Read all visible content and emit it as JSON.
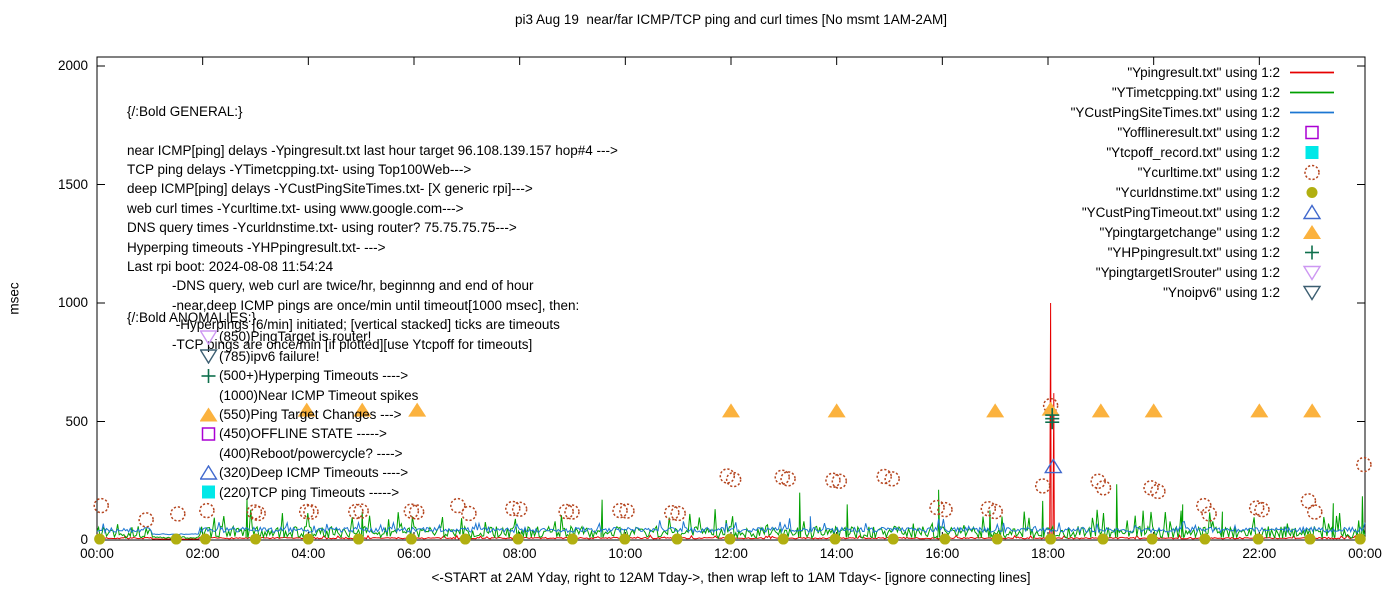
{
  "title": "pi3 Aug 19  near/far ICMP/TCP ping and curl times [No msmt 1AM-2AM]",
  "y_axis_label": "msec",
  "x_axis_caption": "<-START at 2AM Yday, right to 12AM Tday->, then wrap left to 1AM Tday<- [ignore connecting lines]",
  "annotations": {
    "general": {
      "heading": "{/:Bold GENERAL:}",
      "lines": [
        "near ICMP[ping] delays -Ypingresult.txt last hour target 96.108.139.157 hop#4 --->",
        "TCP ping delays -YTimetcpping.txt- using Top100Web--->",
        "deep ICMP[ping] delays -YCustPingSiteTimes.txt- [X generic rpi]--->",
        "web curl times -Ycurltime.txt- using www.google.com--->",
        "DNS query times -Ycurldnstime.txt- using router? 75.75.75.75--->",
        "Hyperping timeouts -YHPpingresult.txt- --->",
        "Last rpi boot: 2024-08-08 11:54:24",
        "            -DNS query, web curl are twice/hr, beginnng and end of hour",
        "            -near,deep ICMP pings are once/min until timeout[1000 msec], then:",
        "             -Hyperpings [6/min] initiated; [vertical stacked] ticks are timeouts",
        "            -TCP pings are once/min [if plotted][use Ytcpoff for timeouts]"
      ]
    },
    "anomalies": {
      "heading": "{/:Bold ANOMALIES:}",
      "items": [
        {
          "marker": "open-triangle-down",
          "color": "#cd97f2",
          "text": "(850)PingTarget is router!"
        },
        {
          "marker": "open-triangle-down",
          "color": "#3c5e71",
          "text": "(785)ipv6 failure!"
        },
        {
          "marker": "plus",
          "color": "#0e6f4c",
          "text": "(500+)Hyperping Timeouts ---->"
        },
        {
          "marker": null,
          "color": null,
          "text": "(1000)Near ICMP Timeout spikes"
        },
        {
          "marker": "filled-triangle-up",
          "color": "#fbb23e",
          "text": "(550)Ping Target Changes --->"
        },
        {
          "marker": "open-square",
          "color": "#aa00d4",
          "text": "(450)OFFLINE STATE ----->"
        },
        {
          "marker": null,
          "color": null,
          "text": "(400)Reboot/powercycle? ---->"
        },
        {
          "marker": "open-triangle-up",
          "color": "#4169cd",
          "text": "(320)Deep ICMP Timeouts ---->"
        },
        {
          "marker": "filled-square",
          "color": "#00e8e8",
          "text": "(220)TCP ping Timeouts ----->"
        }
      ]
    }
  },
  "legend": [
    {
      "label": "\"Ypingresult.txt\" using 1:2",
      "swatch": "line",
      "color": "#e60000"
    },
    {
      "label": "\"YTimetcpping.txt\" using 1:2",
      "swatch": "line",
      "color": "#00a000"
    },
    {
      "label": "\"YCustPingSiteTimes.txt\" using 1:2",
      "swatch": "line",
      "color": "#1c76d2"
    },
    {
      "label": "\"Yofflineresult.txt\" using 1:2",
      "swatch": "open-square",
      "color": "#aa00d4"
    },
    {
      "label": "\"Ytcpoff_record.txt\" using 1:2",
      "swatch": "filled-square",
      "color": "#00e8e8"
    },
    {
      "label": "\"Ycurltime.txt\" using 1:2",
      "swatch": "open-circle",
      "color": "#b5451f"
    },
    {
      "label": "\"Ycurldnstime.txt\" using 1:2",
      "swatch": "filled-circle",
      "color": "#b1af10"
    },
    {
      "label": "\"YCustPingTimeout.txt\" using 1:2",
      "swatch": "open-triangle-up",
      "color": "#4169cd"
    },
    {
      "label": "\"Ypingtargetchange\" using 1:2",
      "swatch": "filled-triangle-up",
      "color": "#fbb23e"
    },
    {
      "label": "\"YHPpingresult.txt\" using 1:2",
      "swatch": "plus",
      "color": "#0e6f4c"
    },
    {
      "label": "\"YpingtargetISrouter\" using 1:2",
      "swatch": "open-triangle-down",
      "color": "#cd97f2"
    },
    {
      "label": "\"Ynoipv6\" using 1:2",
      "swatch": "open-triangle-down",
      "color": "#3c5e71"
    }
  ],
  "chart_data": {
    "type": "line",
    "x_unit": "hours since 2AM yesterday",
    "xlim": [
      0,
      24
    ],
    "ylim": [
      0,
      2000
    ],
    "x_tick_step_hours": 2,
    "x_tick_labels": [
      "00:00",
      "02:00",
      "04:00",
      "06:00",
      "08:00",
      "10:00",
      "12:00",
      "14:00",
      "16:00",
      "18:00",
      "20:00",
      "22:00",
      "00:00"
    ],
    "y_ticks": [
      0,
      500,
      1000,
      1500,
      2000
    ],
    "no_measurement_gap_hours": [
      1.0,
      2.0
    ],
    "series": [
      {
        "name": "Ypingresult.txt",
        "kind": "noisy-line",
        "color": "#e60000",
        "baseline_ms": 5,
        "noise_ms": 6,
        "seed": 7,
        "spikes": [
          [
            18.05,
            1000
          ],
          [
            18.11,
            620
          ]
        ]
      },
      {
        "name": "YTimetcpping.txt",
        "kind": "noisy-line",
        "color": "#00a000",
        "baseline_ms": 8,
        "noise_ms": 50,
        "seed": 13,
        "spikes": [
          [
            2.84,
            175
          ],
          [
            5.02,
            120
          ],
          [
            9.56,
            170
          ],
          [
            13.3,
            200
          ],
          [
            14.2,
            150
          ],
          [
            15.93,
            212
          ],
          [
            16.9,
            125
          ],
          [
            17.9,
            165
          ],
          [
            19.3,
            235
          ],
          [
            20.55,
            150
          ],
          [
            21.3,
            120
          ],
          [
            23.4,
            155
          ],
          [
            23.95,
            185
          ]
        ]
      },
      {
        "name": "YCustPingSiteTimes.txt",
        "kind": "noisy-line",
        "color": "#1c76d2",
        "baseline_ms": 32,
        "noise_ms": 22,
        "seed": 29,
        "spikes": [
          [
            13.5,
            100
          ]
        ]
      },
      {
        "name": "Ycurltime.txt",
        "kind": "scatter",
        "marker": "open-circle",
        "color": "#b5451f",
        "points": [
          [
            0.08,
            145
          ],
          [
            0.93,
            85
          ],
          [
            1.53,
            110
          ],
          [
            2.08,
            124
          ],
          [
            2.98,
            118
          ],
          [
            3.05,
            112
          ],
          [
            3.97,
            120
          ],
          [
            4.05,
            118
          ],
          [
            4.9,
            120
          ],
          [
            5.0,
            122
          ],
          [
            5.95,
            122
          ],
          [
            6.05,
            118
          ],
          [
            6.83,
            145
          ],
          [
            7.04,
            112
          ],
          [
            7.87,
            133
          ],
          [
            8.0,
            130
          ],
          [
            8.88,
            120
          ],
          [
            8.99,
            118
          ],
          [
            9.9,
            124
          ],
          [
            10.03,
            122
          ],
          [
            10.88,
            115
          ],
          [
            11.0,
            112
          ],
          [
            11.93,
            270
          ],
          [
            12.05,
            255
          ],
          [
            12.97,
            265
          ],
          [
            13.08,
            258
          ],
          [
            13.93,
            252
          ],
          [
            14.05,
            248
          ],
          [
            14.9,
            268
          ],
          [
            15.05,
            258
          ],
          [
            15.9,
            137
          ],
          [
            16.05,
            128
          ],
          [
            16.87,
            132
          ],
          [
            17.0,
            120
          ],
          [
            17.9,
            228
          ],
          [
            18.05,
            567
          ],
          [
            18.95,
            248
          ],
          [
            19.05,
            220
          ],
          [
            19.95,
            220
          ],
          [
            20.08,
            205
          ],
          [
            20.95,
            145
          ],
          [
            21.05,
            110
          ],
          [
            21.95,
            135
          ],
          [
            22.05,
            128
          ],
          [
            22.93,
            165
          ],
          [
            23.05,
            118
          ],
          [
            23.98,
            318
          ]
        ]
      },
      {
        "name": "Ycurldnstime.txt",
        "kind": "scatter",
        "marker": "filled-circle",
        "color": "#b1af10",
        "points": [
          [
            0.05,
            4
          ],
          [
            1.5,
            4
          ],
          [
            2.05,
            4
          ],
          [
            3.0,
            4
          ],
          [
            4.0,
            4
          ],
          [
            4.95,
            4
          ],
          [
            5.95,
            4
          ],
          [
            6.97,
            4
          ],
          [
            7.97,
            4
          ],
          [
            9.0,
            4
          ],
          [
            9.99,
            4
          ],
          [
            10.98,
            4
          ],
          [
            11.98,
            4
          ],
          [
            12.99,
            4
          ],
          [
            13.97,
            4
          ],
          [
            15.07,
            4
          ],
          [
            16.05,
            4
          ],
          [
            17.04,
            4
          ],
          [
            18.05,
            4
          ],
          [
            19.04,
            4
          ],
          [
            19.97,
            4
          ],
          [
            20.97,
            4
          ],
          [
            21.98,
            4
          ],
          [
            22.96,
            4
          ],
          [
            23.91,
            4
          ]
        ]
      },
      {
        "name": "YCustPingTimeout.txt",
        "kind": "scatter",
        "marker": "open-triangle-up",
        "color": "#4169cd",
        "points": [
          [
            18.1,
            310
          ]
        ]
      },
      {
        "name": "Ypingtargetchange",
        "kind": "scatter",
        "marker": "filled-triangle-up",
        "color": "#fbb23e",
        "points": [
          [
            3.97,
            548
          ],
          [
            5.02,
            548
          ],
          [
            6.06,
            548
          ],
          [
            12.0,
            545
          ],
          [
            14.0,
            545
          ],
          [
            17.0,
            545
          ],
          [
            18.05,
            552
          ],
          [
            19.0,
            545
          ],
          [
            20.0,
            545
          ],
          [
            22.0,
            545
          ],
          [
            23.0,
            545
          ]
        ]
      },
      {
        "name": "YHPpingresult.txt",
        "kind": "scatter",
        "marker": "plus",
        "color": "#0e6f4c",
        "points": [
          [
            18.08,
            497
          ],
          [
            18.08,
            512
          ],
          [
            18.08,
            527
          ]
        ]
      }
    ]
  },
  "layout_note": ""
}
